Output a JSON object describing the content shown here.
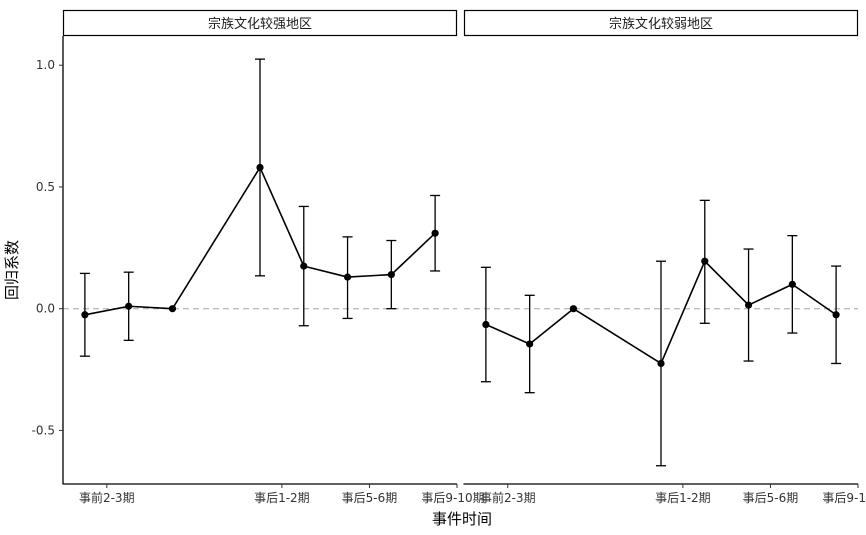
{
  "chart_data": {
    "type": "line",
    "facet_panels": 2,
    "xlabel": "事件时间",
    "ylabel": "回归系数",
    "ylim": [
      -0.72,
      1.12
    ],
    "y_ticks": [
      -0.5,
      0.0,
      0.5,
      1.0
    ],
    "y_tick_labels": [
      "-0.5",
      "0.0",
      "0.5",
      "1.0"
    ],
    "x_tick_labels": [
      "事前2-3期",
      "事后1-2期",
      "事后5-6期",
      "事后9-10期"
    ],
    "reference_line": {
      "y": 0,
      "style": "dashed",
      "color": "#bdbdbd"
    },
    "grid": false,
    "legend": "none",
    "line_color": "#000000",
    "panels": [
      {
        "title": "宗族文化较强地区",
        "points": [
          {
            "x": -3,
            "y": -0.025,
            "lo": -0.195,
            "hi": 0.145
          },
          {
            "x": -2,
            "y": 0.01,
            "lo": -0.13,
            "hi": 0.15
          },
          {
            "x": -1,
            "y": 0.0
          },
          {
            "x": 1,
            "y": 0.58,
            "lo": 0.135,
            "hi": 1.025
          },
          {
            "x": 2,
            "y": 0.175,
            "lo": -0.07,
            "hi": 0.42
          },
          {
            "x": 3,
            "y": 0.13,
            "lo": -0.04,
            "hi": 0.295
          },
          {
            "x": 4,
            "y": 0.14,
            "lo": 0.0,
            "hi": 0.28
          },
          {
            "x": 5,
            "y": 0.31,
            "lo": 0.155,
            "hi": 0.465
          }
        ]
      },
      {
        "title": "宗族文化较弱地区",
        "points": [
          {
            "x": -3,
            "y": -0.065,
            "lo": -0.3,
            "hi": 0.17
          },
          {
            "x": -2,
            "y": -0.145,
            "lo": -0.345,
            "hi": 0.055
          },
          {
            "x": -1,
            "y": 0.0
          },
          {
            "x": 1,
            "y": -0.225,
            "lo": -0.645,
            "hi": 0.195
          },
          {
            "x": 2,
            "y": 0.195,
            "lo": -0.06,
            "hi": 0.445
          },
          {
            "x": 3,
            "y": 0.015,
            "lo": -0.215,
            "hi": 0.245
          },
          {
            "x": 4,
            "y": 0.1,
            "lo": -0.1,
            "hi": 0.3
          },
          {
            "x": 5,
            "y": -0.025,
            "lo": -0.225,
            "hi": 0.175
          }
        ]
      }
    ]
  }
}
